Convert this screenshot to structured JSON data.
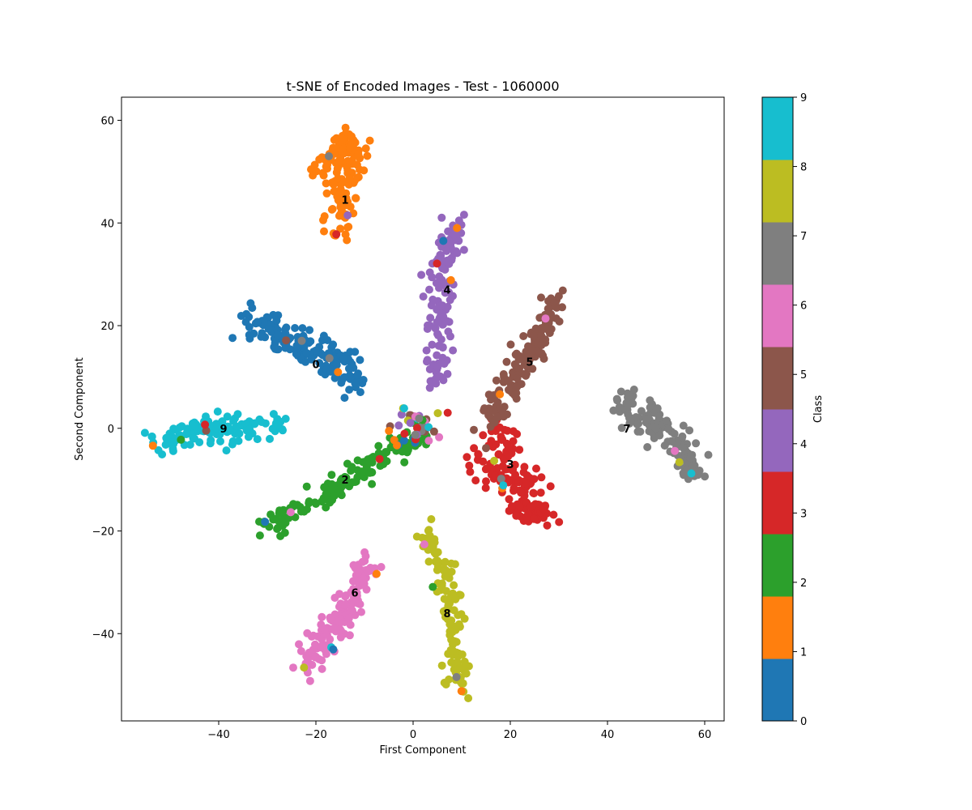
{
  "chart_data": {
    "type": "scatter",
    "title": "t-SNE of Encoded Images - Test  - 1060000",
    "xlabel": "First Component",
    "ylabel": "Second Component",
    "xlim": [
      -60,
      64
    ],
    "ylim": [
      -57,
      64.5
    ],
    "x_ticks": [
      -40,
      -20,
      0,
      20,
      40,
      60
    ],
    "y_ticks": [
      -40,
      -20,
      0,
      20,
      40,
      60
    ],
    "x_tick_labels": [
      "−40",
      "−20",
      "0",
      "20",
      "40",
      "60"
    ],
    "y_tick_labels": [
      "−40",
      "−20",
      "0",
      "20",
      "40",
      "60"
    ],
    "grid": false,
    "colorbar": {
      "label": "Class",
      "range": [
        0,
        9
      ],
      "ticks": [
        0,
        1,
        2,
        3,
        4,
        5,
        6,
        7,
        8,
        9
      ],
      "tick_labels": [
        "0",
        "1",
        "2",
        "3",
        "4",
        "5",
        "6",
        "7",
        "8",
        "9"
      ],
      "colors": [
        "#1f77b4",
        "#ff7f0e",
        "#2ca02c",
        "#d62728",
        "#9467bd",
        "#8c564b",
        "#e377c2",
        "#7f7f7f",
        "#bcbd22",
        "#17becf"
      ]
    },
    "clusters": [
      {
        "class": 0,
        "label": "0",
        "label_pos": [
          -20,
          12.5
        ],
        "path": [
          [
            -35,
            22
          ],
          [
            -31,
            20.5
          ],
          [
            -27,
            18
          ],
          [
            -22,
            16
          ],
          [
            -16,
            13
          ],
          [
            -13,
            10.5
          ],
          [
            -11,
            8.5
          ]
        ],
        "spread": 1.8,
        "count": 150
      },
      {
        "class": 1,
        "label": "1",
        "label_pos": [
          -14,
          44.5
        ],
        "path": [
          [
            -20,
            49
          ],
          [
            -16,
            53
          ],
          [
            -14,
            57
          ],
          [
            -12,
            53
          ],
          [
            -14,
            48
          ],
          [
            -15,
            42
          ],
          [
            -16,
            37
          ]
        ],
        "spread": 1.5,
        "count": 150
      },
      {
        "class": 2,
        "label": "2",
        "label_pos": [
          -14,
          -10
        ],
        "path": [
          [
            -31,
            -20
          ],
          [
            -26,
            -17
          ],
          [
            -20,
            -14
          ],
          [
            -13,
            -10
          ],
          [
            -7,
            -6
          ],
          [
            -2,
            -3
          ],
          [
            3,
            -1
          ]
        ],
        "spread": 1.2,
        "count": 140
      },
      {
        "class": 3,
        "label": "3",
        "label_pos": [
          20,
          -7
        ],
        "path": [
          [
            13,
            -7
          ],
          [
            18,
            -10
          ],
          [
            22,
            -14
          ],
          [
            27,
            -18
          ],
          [
            20,
            -4
          ],
          [
            17,
            0
          ]
        ],
        "spread": 1.8,
        "count": 150
      },
      {
        "class": 4,
        "label": "4",
        "label_pos": [
          7,
          27
        ],
        "path": [
          [
            9,
            41
          ],
          [
            8,
            36
          ],
          [
            6,
            32
          ],
          [
            6,
            27
          ],
          [
            5,
            21
          ],
          [
            5,
            12
          ],
          [
            4,
            8
          ]
        ],
        "spread": 1.4,
        "count": 130
      },
      {
        "class": 5,
        "label": "5",
        "label_pos": [
          24,
          13
        ],
        "path": [
          [
            16,
            1
          ],
          [
            18,
            6
          ],
          [
            21,
            10
          ],
          [
            24,
            15
          ],
          [
            27,
            21
          ],
          [
            30,
            26
          ]
        ],
        "spread": 1.4,
        "count": 140
      },
      {
        "class": 6,
        "label": "6",
        "label_pos": [
          -12,
          -32
        ],
        "path": [
          [
            -9,
            -26
          ],
          [
            -11,
            -31
          ],
          [
            -14,
            -36
          ],
          [
            -18,
            -41
          ],
          [
            -22,
            -46
          ]
        ],
        "spread": 1.5,
        "count": 140
      },
      {
        "class": 7,
        "label": "7",
        "label_pos": [
          44,
          0
        ],
        "path": [
          [
            42,
            6
          ],
          [
            47,
            3
          ],
          [
            52,
            0
          ],
          [
            55,
            -4
          ],
          [
            57,
            -9
          ]
        ],
        "spread": 1.6,
        "count": 130
      },
      {
        "class": 8,
        "label": "8",
        "label_pos": [
          7,
          -36
        ],
        "path": [
          [
            3,
            -20
          ],
          [
            6,
            -28
          ],
          [
            8,
            -35
          ],
          [
            8,
            -42
          ],
          [
            9,
            -49
          ],
          [
            10,
            -51
          ]
        ],
        "spread": 1.2,
        "count": 120
      },
      {
        "class": 9,
        "label": "9",
        "label_pos": [
          -39,
          0
        ],
        "path": [
          [
            -53,
            -2
          ],
          [
            -48,
            -2
          ],
          [
            -43,
            0
          ],
          [
            -38,
            0
          ],
          [
            -32,
            0
          ],
          [
            -27,
            0.5
          ]
        ],
        "spread": 1.3,
        "count": 130
      }
    ]
  }
}
